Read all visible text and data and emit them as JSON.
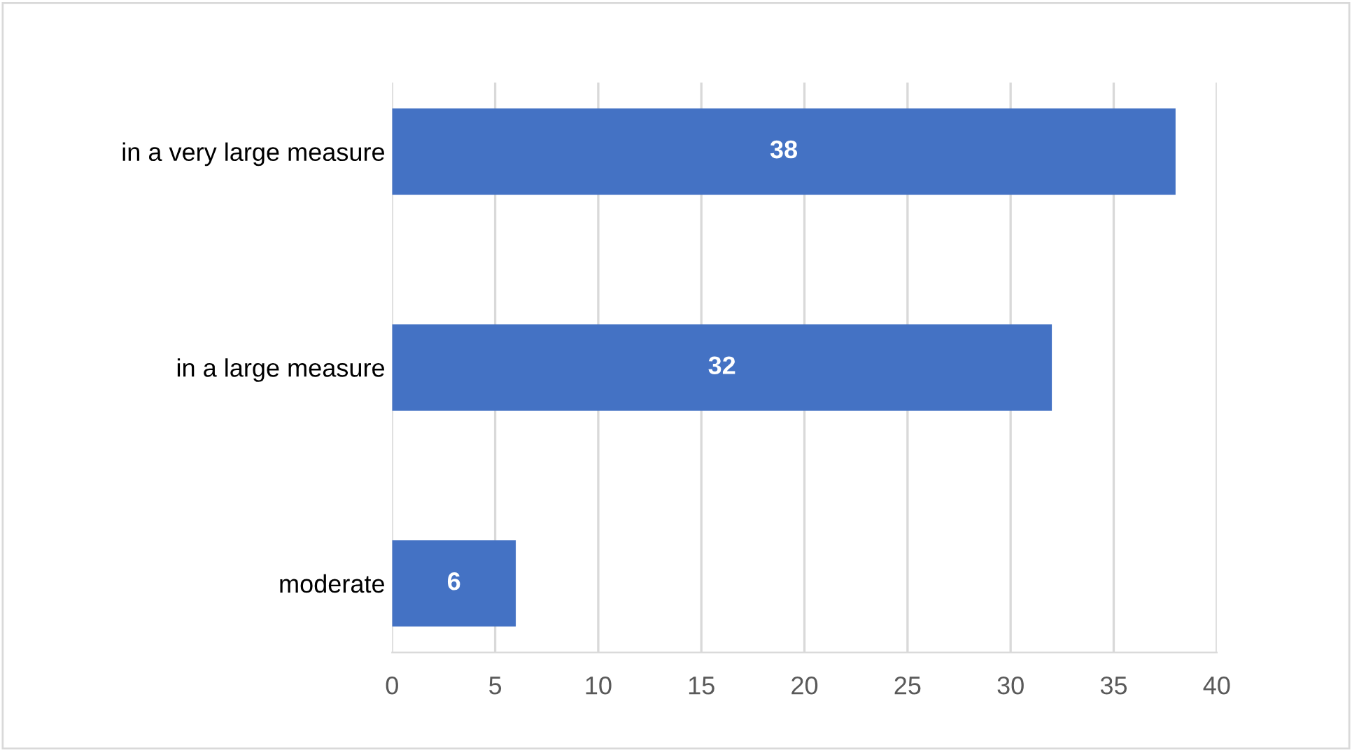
{
  "chart_data": {
    "type": "bar",
    "orientation": "horizontal",
    "categories": [
      "in a very large measure",
      "in a large measure",
      "moderate"
    ],
    "values": [
      38,
      32,
      6
    ],
    "color": "#4472c4",
    "xlim": [
      0,
      40
    ],
    "xticks": [
      0,
      5,
      10,
      15,
      20,
      25,
      30,
      35,
      40
    ],
    "grid": "x",
    "data_labels": true
  }
}
